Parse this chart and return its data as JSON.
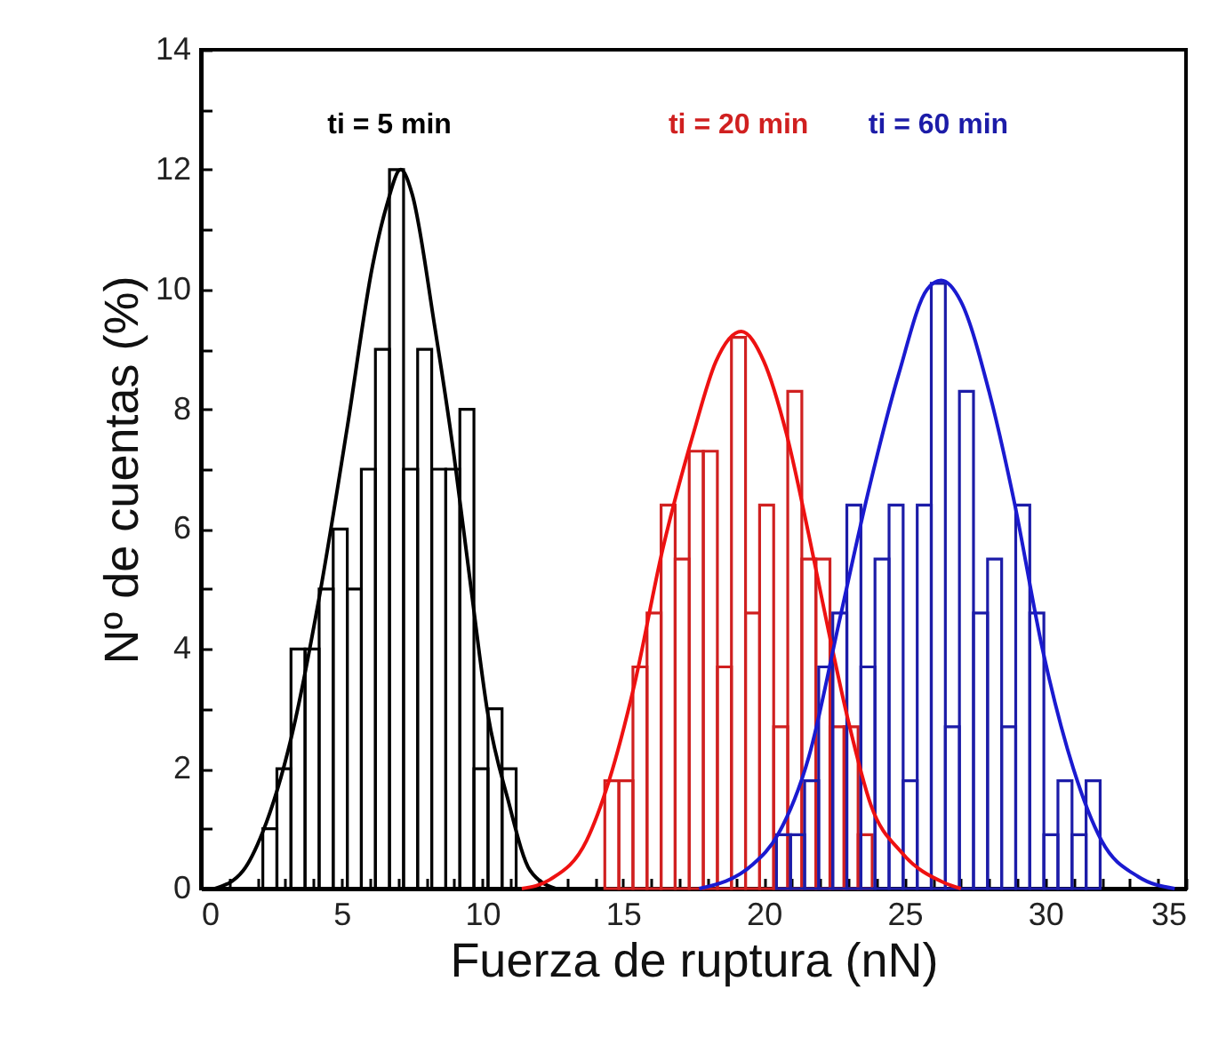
{
  "chart_data": {
    "type": "histogram",
    "xlabel": "Fuerza de ruptura (nN)",
    "ylabel": "Nº de cuentas (%)",
    "xlim": [
      0,
      35
    ],
    "ylim": [
      0,
      14
    ],
    "xticks": [
      0,
      {
        "value": 1,
        "label": null
      },
      {
        "value": 2,
        "label": null
      },
      {
        "value": 3,
        "label": null
      },
      {
        "value": 4,
        "label": null
      },
      5,
      {
        "value": 6,
        "label": null
      },
      {
        "value": 7,
        "label": null
      },
      {
        "value": 8,
        "label": null
      },
      {
        "value": 9,
        "label": null
      },
      10,
      {
        "value": 11,
        "label": null
      },
      {
        "value": 12,
        "label": null
      },
      {
        "value": 13,
        "label": null
      },
      {
        "value": 14,
        "label": null
      },
      15,
      {
        "value": 16,
        "label": null
      },
      {
        "value": 17,
        "label": null
      },
      {
        "value": 18,
        "label": null
      },
      {
        "value": 19,
        "label": null
      },
      20,
      {
        "value": 21,
        "label": null
      },
      {
        "value": 22,
        "label": null
      },
      {
        "value": 23,
        "label": null
      },
      {
        "value": 24,
        "label": null
      },
      25,
      {
        "value": 26,
        "label": null
      },
      {
        "value": 27,
        "label": null
      },
      {
        "value": 28,
        "label": null
      },
      {
        "value": 29,
        "label": null
      },
      30,
      {
        "value": 31,
        "label": null
      },
      {
        "value": 32,
        "label": null
      },
      {
        "value": 33,
        "label": null
      },
      {
        "value": 34,
        "label": null
      },
      35
    ],
    "yticks": [
      0,
      {
        "value": 1,
        "label": null
      },
      2,
      {
        "value": 3,
        "label": null
      },
      4,
      {
        "value": 5,
        "label": null
      },
      6,
      {
        "value": 7,
        "label": null
      },
      8,
      {
        "value": 9,
        "label": null
      },
      10,
      {
        "value": 11,
        "label": null
      },
      12,
      {
        "value": 13,
        "label": null
      },
      14
    ],
    "marker": "none",
    "line_style": "solid",
    "series": [
      {
        "name": "ti = 5 min",
        "color": "#000000",
        "bins": [
          2.2,
          2.7,
          3.2,
          3.7,
          4.2,
          4.7,
          5.2,
          5.7,
          6.2,
          6.7,
          7.2,
          7.7,
          8.2,
          8.7,
          9.2,
          9.7,
          10.2,
          10.7,
          11.2
        ],
        "values": [
          1,
          2,
          4,
          4,
          5,
          6,
          5,
          7,
          9,
          12,
          7,
          9,
          7,
          7,
          8,
          2,
          3,
          2
        ]
      },
      {
        "name": "ti = 20 min",
        "color": "#d02020",
        "bins": [
          14.35,
          14.85,
          15.35,
          15.85,
          16.35,
          16.85,
          17.35,
          17.85,
          18.35,
          18.85,
          19.35,
          19.85,
          20.35,
          20.85,
          21.35,
          21.85,
          22.35,
          22.85,
          23.35,
          23.85
        ],
        "values": [
          1.8,
          1.8,
          3.7,
          4.6,
          6.4,
          5.5,
          7.3,
          7.3,
          3.7,
          9.2,
          4.6,
          6.4,
          2.7,
          8.3,
          5.5,
          5.5,
          2.7,
          2.7,
          0.9
        ]
      },
      {
        "name": "ti = 60 min",
        "color": "#1c1ca8",
        "bins": [
          20.45,
          20.95,
          21.45,
          21.95,
          22.45,
          22.95,
          23.45,
          23.95,
          24.45,
          24.95,
          25.45,
          25.95,
          26.45,
          26.95,
          27.45,
          27.95,
          28.45,
          28.95,
          29.45,
          29.95,
          30.45,
          30.95,
          31.45,
          31.95
        ],
        "values": [
          0.9,
          0.9,
          1.8,
          3.7,
          4.6,
          6.4,
          3.7,
          5.5,
          6.4,
          1.8,
          6.4,
          10.1,
          2.7,
          8.3,
          4.6,
          5.5,
          2.7,
          6.4,
          4.6,
          0.9,
          1.8,
          0.9,
          1.8
        ]
      },
      {
        "type": "line",
        "color": "#000000",
        "x": [
          0.5,
          1.5,
          2.2,
          3.2,
          4.2,
          5.2,
          6.1,
          6.6,
          7.1,
          7.5,
          8.3,
          9.0,
          9.6,
          10.2,
          10.9,
          11.7,
          12.6
        ],
        "values": [
          0,
          0.3,
          0.95,
          2.5,
          4.85,
          7.7,
          10.4,
          11.4,
          12,
          11.6,
          9.4,
          7.2,
          5,
          2.9,
          1.5,
          0.3,
          0
        ]
      },
      {
        "type": "line",
        "color": "#ee1111",
        "x": [
          11.4,
          12.4,
          13.7,
          14.5,
          15.4,
          16.4,
          17.5,
          18.3,
          19.2,
          20.0,
          20.8,
          21.6,
          22.3,
          23.0,
          23.8,
          24.9,
          26.4,
          27.0
        ],
        "values": [
          0,
          0.15,
          0.8,
          1.8,
          3.4,
          5.65,
          7.6,
          8.8,
          9.3,
          8.8,
          7.6,
          5.9,
          4.3,
          2.8,
          1.4,
          0.6,
          0.1,
          0
        ]
      },
      {
        "type": "line",
        "color": "#1a1ad0",
        "x": [
          17.7,
          19.6,
          20.5,
          21.6,
          22.7,
          23.7,
          24.8,
          25.8,
          26.3,
          27.0,
          28.0,
          28.9,
          29.9,
          31.0,
          32.0,
          33.3,
          34.6
        ],
        "values": [
          0,
          0.4,
          0.9,
          2.2,
          4.5,
          6.6,
          8.6,
          10.0,
          10.15,
          9.8,
          8.3,
          6.45,
          4.0,
          2.0,
          0.8,
          0.2,
          0
        ]
      }
    ]
  }
}
